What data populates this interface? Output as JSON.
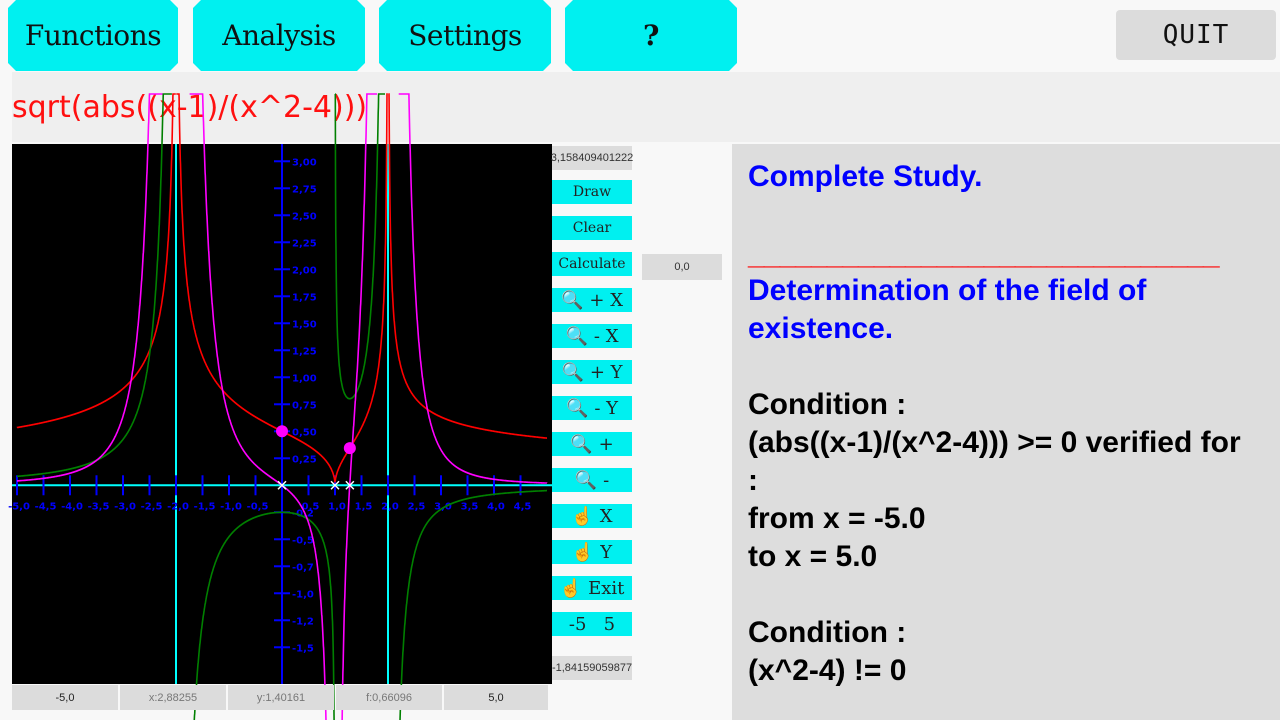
{
  "menu": {
    "functions": "Functions",
    "analysis": "Analysis",
    "settings": "Settings",
    "help": "?",
    "quit": "QUIT"
  },
  "formula": "sqrt(abs((x-1)/(x^2-4)))",
  "side": {
    "ymax": "3,158409401222",
    "draw": "Draw",
    "clear": "Clear",
    "calculate": "Calculate",
    "zoom_in_x": "+ X",
    "zoom_out_x": "- X",
    "zoom_in_y": "+ Y",
    "zoom_out_y": "- Y",
    "zoom_in": "+",
    "zoom_out": "-",
    "pan_x": "X",
    "pan_y": "Y",
    "exit": "Exit",
    "range": "-5   5",
    "ymin": "-1,84159059877",
    "calc_value": "0,0"
  },
  "status": {
    "xmin": "-5,0",
    "x": "x:2,88255",
    "y": "y:1,40161",
    "f": "f:0,66096",
    "xmax": "5,0"
  },
  "study": {
    "title": "Complete Study.",
    "separator": "______________________________",
    "heading": "Determination of the field of existence.",
    "cond1_label": "Condition :",
    "cond1_expr": "(abs((x-1)/(x^2-4))) >= 0 verified for :",
    "from": "from x = -5.0",
    "to": "to x = 5.0",
    "cond2_label": "Condition :",
    "cond2_expr": "(x^2-4) != 0"
  },
  "chart_data": {
    "type": "line",
    "function": "sqrt(abs((x-1)/(x^2-4)))",
    "xlim": [
      -5,
      5
    ],
    "ylim": [
      -1.84,
      3.16
    ],
    "x_tick_labels": [
      "-5,0",
      "-4,5",
      "-4,0",
      "-3,5",
      "-3,0",
      "-2,5",
      "-2,0",
      "-1,5",
      "-1,0",
      "-0,5",
      "0,5",
      "1,0",
      "1,5",
      "2,0",
      "2,5",
      "3,0",
      "3,5",
      "4,0",
      "4,5"
    ],
    "y_tick_labels": [
      "3,00",
      "2,75",
      "2,50",
      "2,25",
      "2,00",
      "1,75",
      "1,50",
      "1,25",
      "1,00",
      "0,75",
      "0,50",
      "0,25",
      "-0,2",
      "-0,5",
      "-0,7",
      "-1,0",
      "-1,2",
      "-1,5"
    ],
    "series": [
      {
        "curve": "f",
        "color": "#ff0000"
      },
      {
        "curve": "f'",
        "color": "#008000"
      },
      {
        "curve": "f''",
        "color": "#ff00ff"
      }
    ],
    "asymptotes_x": [
      -2,
      2
    ],
    "asymptote_color": "#00ffff",
    "marked_points": [
      {
        "x": 0,
        "y": 0.5
      },
      {
        "x": 1.28,
        "y": 0.344
      }
    ],
    "axis_marks_x": [
      0,
      1,
      1.28
    ]
  }
}
